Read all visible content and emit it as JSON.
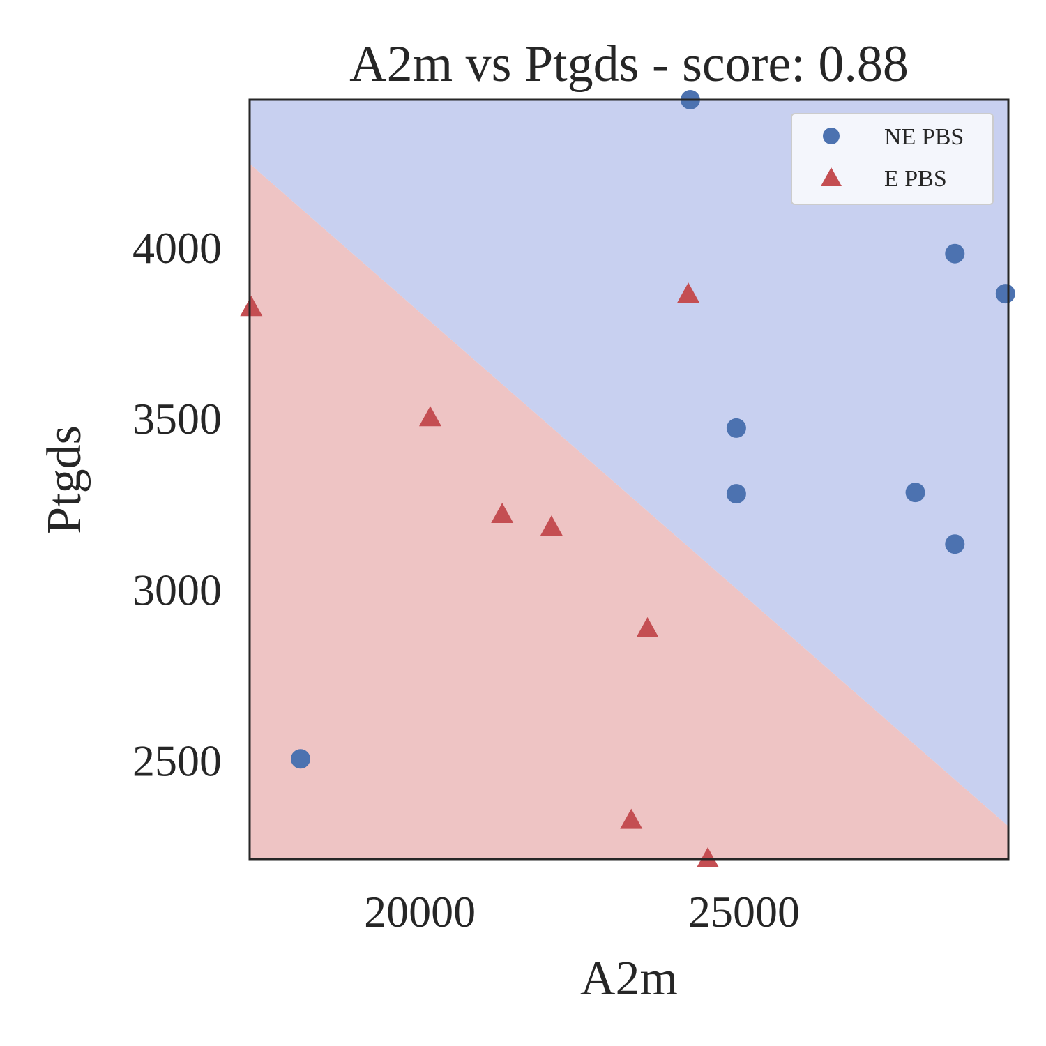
{
  "chart_data": {
    "type": "scatter",
    "title": "A2m vs Ptgds - score: 0.88",
    "xlabel": "A2m",
    "ylabel": "Ptgds",
    "xlim": [
      17375,
      29075
    ],
    "ylim": [
      2210,
      4430
    ],
    "xticks": [
      20000,
      25000
    ],
    "yticks": [
      2500,
      3000,
      3500,
      4000
    ],
    "grid": false,
    "legend_position": "top-right",
    "decision_boundary": {
      "points": [
        [
          17375,
          4243
        ],
        [
          29075,
          2306
        ]
      ],
      "regions": [
        {
          "class": "NE PBS",
          "side": "above",
          "color": "#c8d0f0"
        },
        {
          "class": "E PBS",
          "side": "below",
          "color": "#eec4c4"
        }
      ]
    },
    "series": [
      {
        "name": "NE PBS",
        "marker": "circle",
        "color": "#4c72b0",
        "points": [
          [
            24170,
            4430
          ],
          [
            18160,
            2503
          ],
          [
            24880,
            3470
          ],
          [
            24880,
            3278
          ],
          [
            27640,
            3282
          ],
          [
            28250,
            3980
          ],
          [
            28250,
            3131
          ],
          [
            29030,
            3863
          ]
        ]
      },
      {
        "name": "E PBS",
        "marker": "triangle",
        "color": "#c44e52",
        "points": [
          [
            17400,
            3822
          ],
          [
            20160,
            3500
          ],
          [
            21270,
            3217
          ],
          [
            22030,
            3180
          ],
          [
            23510,
            2883
          ],
          [
            23260,
            2323
          ],
          [
            24140,
            3861
          ],
          [
            24440,
            2210
          ]
        ]
      }
    ]
  }
}
